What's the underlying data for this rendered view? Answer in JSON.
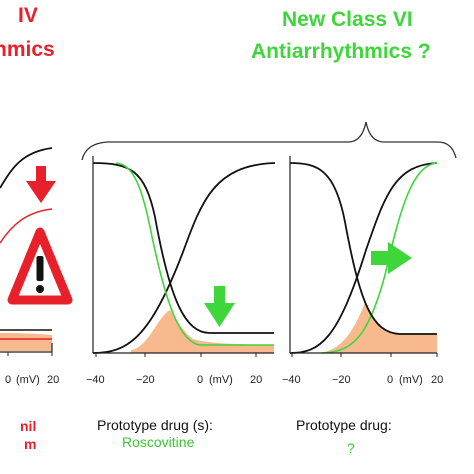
{
  "titles": {
    "left_line1": "IV",
    "left_line2": "hmics",
    "right_line1": "New Class VI",
    "right_line2": "Antiarrhythmics ?"
  },
  "axes": {
    "left": [
      "0",
      "(mV)",
      "20"
    ],
    "middle": [
      "−40",
      "−20",
      "0",
      "(mV)",
      "20"
    ],
    "right": [
      "−40",
      "−20",
      "0",
      "(mV)",
      "20"
    ]
  },
  "captions": {
    "left_line1": "nil",
    "left_line2": "m",
    "middle_label": "Prototype drug (s):",
    "middle_drug": "Roscovitine",
    "right_label": "Prototype drug:",
    "right_drug": "?"
  },
  "colors": {
    "red": "#e8202a",
    "green": "#3ed63a",
    "window_fill": "#f8b98e",
    "curve": "#111111"
  },
  "icons": [
    "down-arrow-red-icon",
    "warning-triangle-icon",
    "down-arrow-green-icon",
    "right-arrow-green-icon"
  ]
}
